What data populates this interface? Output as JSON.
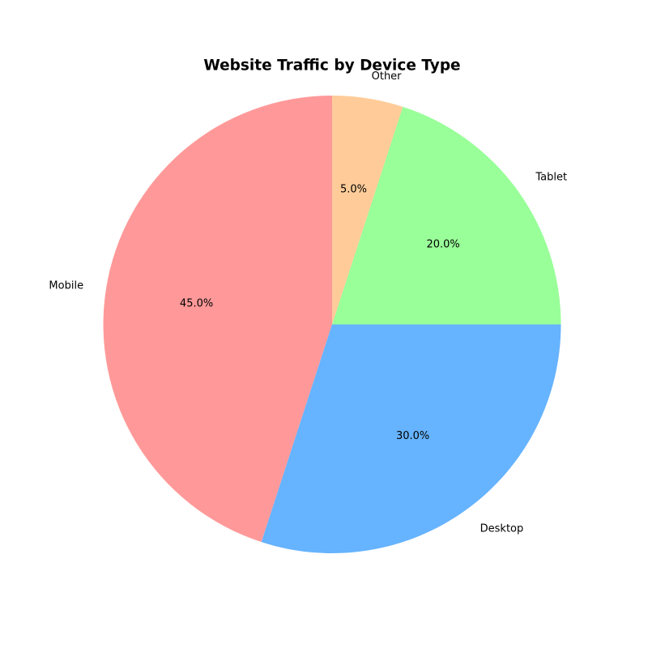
{
  "page": {
    "background": "#ffffff",
    "text_color": "#000000"
  },
  "chart_data": {
    "type": "pie",
    "title": "Website Traffic by Device Type",
    "slices": [
      {
        "label": "Mobile",
        "value": 45.0,
        "pct_label": "45.0%",
        "color": "#ff9999"
      },
      {
        "label": "Desktop",
        "value": 30.0,
        "pct_label": "30.0%",
        "color": "#66b3ff"
      },
      {
        "label": "Tablet",
        "value": 20.0,
        "pct_label": "20.0%",
        "color": "#99ff99"
      },
      {
        "label": "Other",
        "value": 5.0,
        "pct_label": "5.0%",
        "color": "#ffcc99"
      }
    ],
    "start_angle_deg": 90,
    "direction": "counterclockwise",
    "label_distance": 1.1,
    "pct_distance": 0.6,
    "legend": "none",
    "grid": false
  }
}
